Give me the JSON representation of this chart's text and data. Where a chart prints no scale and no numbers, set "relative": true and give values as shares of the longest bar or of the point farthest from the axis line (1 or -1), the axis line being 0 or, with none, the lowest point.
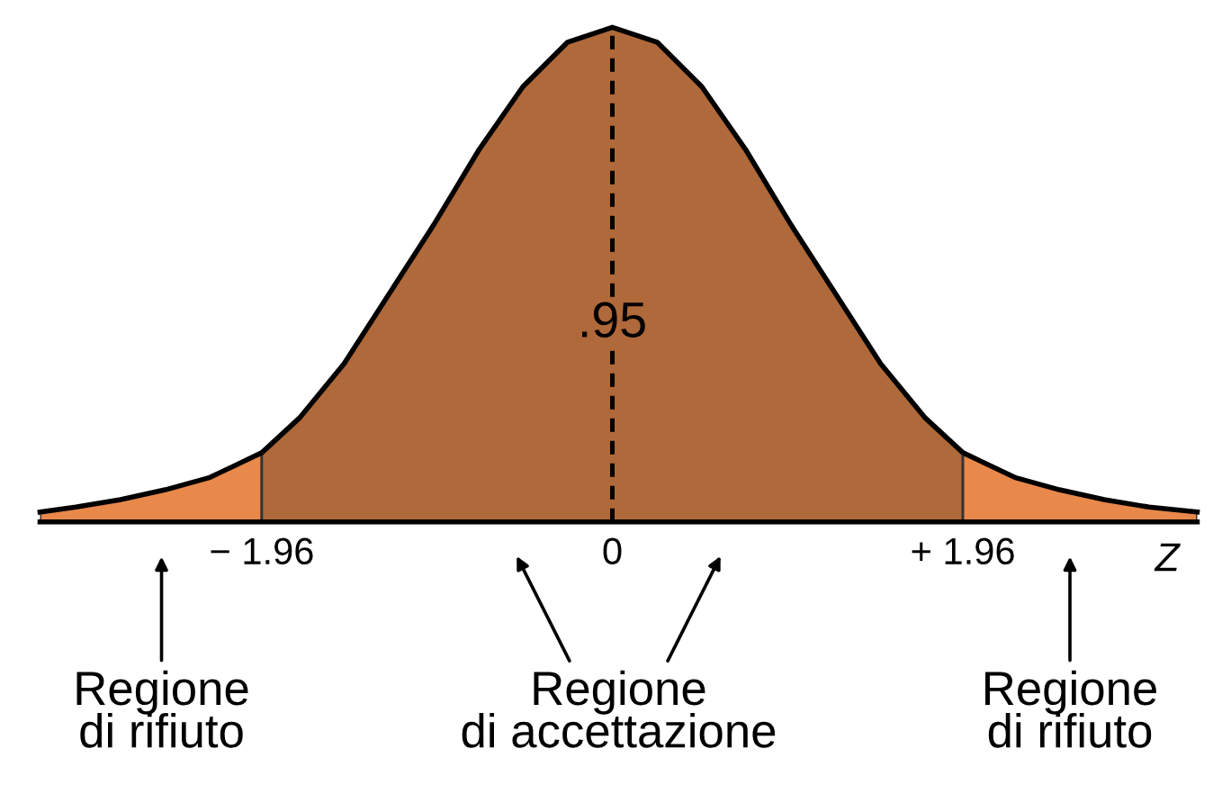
{
  "chart_data": {
    "type": "area",
    "relative": true,
    "xlim": [
      -3.2,
      3.27
    ],
    "xticks": [
      {
        "value": -1.96,
        "label": "− 1.96"
      },
      0,
      {
        "value": 1.96,
        "label": "+ 1.96"
      }
    ],
    "xlabel": "Z",
    "tick_labels": "x",
    "grid": false,
    "series": [
      {
        "color": "#e8884a",
        "x": [
          -3.2,
          -3,
          -2.75,
          -2.5,
          -2.25,
          -1.96
        ],
        "values": [
          0.02,
          0.03,
          0.045,
          0.065,
          0.09,
          0.14
        ]
      },
      {
        "color": "#b0693a",
        "x": [
          -1.96,
          -1.75,
          -1.5,
          -1.25,
          -1,
          -0.75,
          -0.5,
          -0.25,
          0,
          0.25,
          0.5,
          0.75,
          1,
          1.25,
          1.5,
          1.75,
          1.96
        ],
        "values": [
          0.14,
          0.21,
          0.32,
          0.46,
          0.6,
          0.75,
          0.88,
          0.97,
          1,
          0.97,
          0.88,
          0.75,
          0.6,
          0.46,
          0.32,
          0.21,
          0.14
        ]
      },
      {
        "color": "#e8884a",
        "x": [
          1.96,
          2.25,
          2.5,
          2.75,
          3,
          3.27
        ],
        "values": [
          0.14,
          0.09,
          0.065,
          0.045,
          0.03,
          0.02
        ]
      },
      {
        "type": "line",
        "color": "#000000",
        "x": [
          -3.2,
          -3,
          -2.75,
          -2.5,
          -2.25,
          -1.96,
          -1.75,
          -1.5,
          -1.25,
          -1,
          -0.75,
          -0.5,
          -0.25,
          0,
          0.25,
          0.5,
          0.75,
          1,
          1.25,
          1.5,
          1.75,
          1.96,
          2.25,
          2.5,
          2.75,
          3,
          3.27
        ],
        "values": [
          0.02,
          0.03,
          0.045,
          0.065,
          0.09,
          0.14,
          0.21,
          0.32,
          0.46,
          0.6,
          0.75,
          0.88,
          0.97,
          1,
          0.97,
          0.88,
          0.75,
          0.6,
          0.46,
          0.32,
          0.21,
          0.14,
          0.09,
          0.065,
          0.045,
          0.03,
          0.02
        ]
      }
    ],
    "ref_lines": [
      {
        "axis": "x",
        "value": 0,
        "line_style": "dashed",
        "color": "#000000"
      }
    ],
    "annotations": [
      {
        "text": ".95",
        "x": 0,
        "y": 0.4
      },
      "Regione\ndi rifiuto",
      "Regione\ndi accettazione",
      "Regione\ndi rifiuto"
    ]
  }
}
